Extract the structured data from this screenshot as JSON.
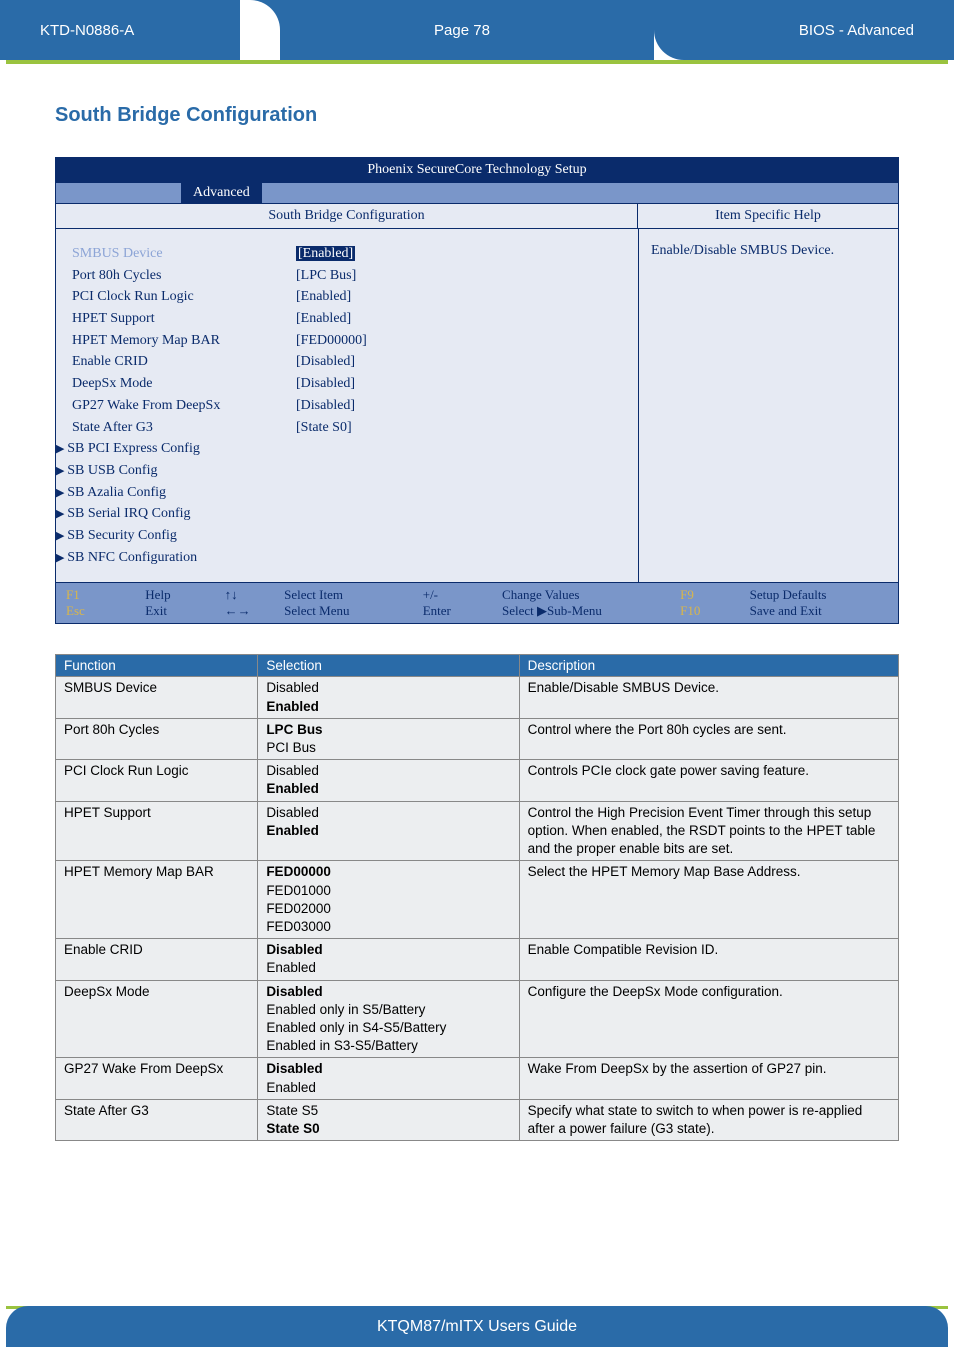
{
  "header": {
    "doc_id": "KTD-N0886-A",
    "page_label": "Page 78",
    "section": "BIOS  - Advanced"
  },
  "section_title": "South Bridge Configuration",
  "bios": {
    "window_title": "Phoenix SecureCore Technology Setup",
    "tab": "Advanced",
    "subheader_left": "South Bridge Configuration",
    "subheader_right": "Item Specific Help",
    "help_text": "Enable/Disable SMBUS Device.",
    "rows": [
      {
        "label": "SMBUS Device",
        "value": "[Enabled]",
        "muted": true,
        "hilite": true
      },
      {
        "label": "Port 80h Cycles",
        "value": "[LPC Bus]"
      },
      {
        "label": "PCI Clock Run Logic",
        "value": "[Enabled]"
      },
      {
        "label": "HPET Support",
        "value": "[Enabled]"
      },
      {
        "label": "HPET Memory Map BAR",
        "value": "[FED00000]"
      },
      {
        "label": "Enable CRID",
        "value": "[Disabled]"
      },
      {
        "label": "DeepSx Mode",
        "value": "[Disabled]"
      },
      {
        "label": "GP27 Wake From DeepSx",
        "value": "[Disabled]"
      },
      {
        "label": "State After G3",
        "value": "[State S0]"
      }
    ],
    "submenus": [
      "SB PCI Express Config",
      "SB USB Config",
      "SB Azalia Config",
      "SB Serial IRQ Config",
      "SB Security Config",
      "SB NFC Configuration"
    ],
    "footer": {
      "r1": [
        "F1",
        "Help",
        "↑↓",
        "Select Item",
        "+/-",
        "Change Values",
        "F9",
        "Setup Defaults"
      ],
      "r2": [
        "Esc",
        "Exit",
        "←→",
        "Select Menu",
        "Enter",
        "Select ▶Sub-Menu",
        "F10",
        "Save and Exit"
      ]
    }
  },
  "table": {
    "headers": [
      "Function",
      "Selection",
      "Description"
    ],
    "rows": [
      {
        "fn": "SMBUS Device",
        "sel": [
          "Disabled",
          {
            "b": "Enabled"
          }
        ],
        "desc": "Enable/Disable SMBUS Device."
      },
      {
        "fn": "Port 80h Cycles",
        "sel": [
          {
            "b": "LPC Bus"
          },
          "PCI Bus"
        ],
        "desc": "Control where the Port 80h cycles are sent."
      },
      {
        "fn": "PCI Clock Run Logic",
        "sel": [
          "Disabled",
          {
            "b": "Enabled"
          }
        ],
        "desc": "Controls PCIe clock gate power saving feature."
      },
      {
        "fn": "HPET Support",
        "sel": [
          "Disabled",
          {
            "b": "Enabled"
          }
        ],
        "desc": "Control the High Precision Event Timer through this setup option. When enabled, the RSDT points to the HPET table and the proper enable bits are set."
      },
      {
        "fn": "HPET Memory Map BAR",
        "sel": [
          {
            "b": "FED00000"
          },
          "FED01000",
          "FED02000",
          "FED03000"
        ],
        "desc": "Select the HPET Memory Map Base Address."
      },
      {
        "fn": "Enable CRID",
        "sel": [
          {
            "b": "Disabled"
          },
          "Enabled"
        ],
        "desc": "Enable Compatible Revision ID."
      },
      {
        "fn": "DeepSx Mode",
        "sel": [
          {
            "b": "Disabled"
          },
          "Enabled only in S5/Battery",
          "Enabled only in S4-S5/Battery",
          "Enabled in S3-S5/Battery"
        ],
        "desc": "Configure the DeepSx Mode configuration."
      },
      {
        "fn": "GP27 Wake From DeepSx",
        "sel": [
          {
            "b": "Disabled"
          },
          "Enabled"
        ],
        "desc": "Wake From DeepSx by the assertion of GP27 pin."
      },
      {
        "fn": "State After G3",
        "sel": [
          "State S5",
          {
            "b": "State S0"
          }
        ],
        "desc": "Specify what state to switch to when power is re-applied after a power failure (G3 state)."
      }
    ]
  },
  "footer_text": "KTQM87/mITX Users Guide"
}
